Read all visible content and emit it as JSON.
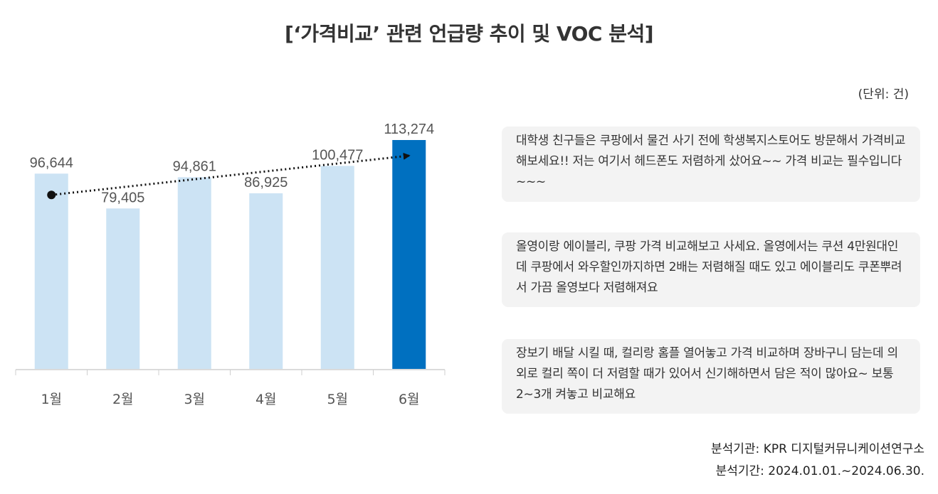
{
  "title": "[‘가격비교’ 관련 언급량 추이 및 VOC 분석]",
  "unit": "(단위: 건)",
  "chart_data": {
    "type": "bar",
    "title": "‘가격비교’ 관련 언급량 추이",
    "categories": [
      "1월",
      "2월",
      "3월",
      "4월",
      "5월",
      "6월"
    ],
    "values": [
      96644,
      79405,
      94861,
      86925,
      100477,
      113274
    ],
    "labels": [
      "96,644",
      "79,405",
      "94,861",
      "86,925",
      "100,477",
      "113,274"
    ],
    "xlabel": "",
    "ylabel": "",
    "ylim": [
      0,
      113274
    ],
    "grid": false,
    "trend": "upward dotted arrow from 1월 to 6월",
    "colors": {
      "normal": "#cce3f4",
      "highlight": "#0070c0"
    },
    "highlight_index": 5
  },
  "voc": [
    "대학생 친구들은 쿠팡에서 물건 사기 전에 학생복지스토어도 방문해서 가격비교 해보세요!! 저는 여기서 헤드폰도 저렴하게 샀어요~~ 가격 비교는 필수입니다~~~",
    "올영이랑 에이블리, 쿠팡 가격 비교해보고 사세요. 올영에서는 쿠션 4만원대인데 쿠팡에서 와우할인까지하면 2배는 저렴해질 때도 있고 에이블리도 쿠폰뿌려서 가끔 올영보다 저렴해져요",
    "장보기 배달 시킬 때, 컬리랑 홈플 열어놓고 가격 비교하며 장바구니 담는데 의외로 컬리 쪽이 더 저렴할 때가 있어서 신기해하면서 담은 적이 많아요~ 보통 2~3개 켜놓고 비교해요"
  ],
  "footer": {
    "org": "분석기관: KPR 디지털커뮤니케이션연구소",
    "period": "분석기간: 2024.01.01.~2024.06.30."
  }
}
